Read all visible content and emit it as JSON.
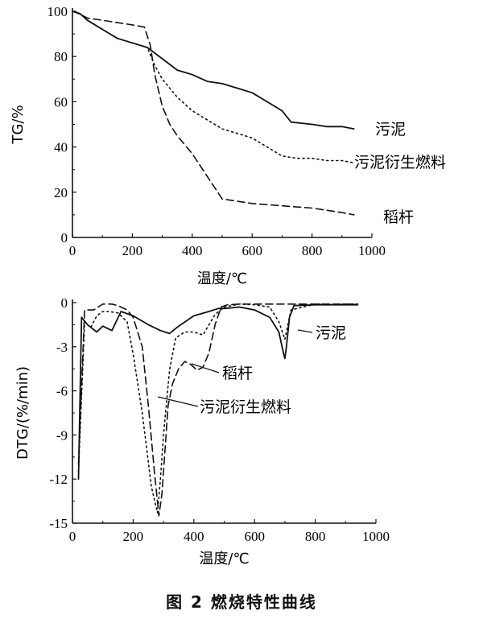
{
  "chart_data": [
    {
      "type": "line",
      "ylabel": "TG/%",
      "xlabel": "温度/℃",
      "xlim": [
        0,
        1000
      ],
      "ylim": [
        0,
        100
      ],
      "xticks": [
        0,
        200,
        400,
        600,
        800,
        1000
      ],
      "yticks": [
        0,
        20,
        40,
        60,
        80,
        100
      ],
      "grid": false,
      "series": [
        {
          "name": "污泥",
          "style": "solid",
          "x": [
            0,
            25,
            50,
            100,
            150,
            200,
            250,
            300,
            350,
            400,
            450,
            500,
            550,
            600,
            650,
            700,
            730,
            800,
            850,
            900,
            940
          ],
          "y": [
            100,
            99,
            96,
            92,
            88,
            86,
            84,
            79,
            74,
            72,
            69,
            68,
            66,
            64,
            60,
            56,
            51,
            50,
            49,
            49,
            48
          ]
        },
        {
          "name": "污泥衍生燃料",
          "style": "dotted",
          "x": [
            0,
            25,
            50,
            100,
            150,
            200,
            250,
            275,
            300,
            350,
            400,
            450,
            500,
            550,
            600,
            650,
            700,
            750,
            800,
            850,
            900,
            940
          ],
          "y": [
            100,
            99,
            96,
            92,
            88,
            86,
            84,
            76,
            70,
            62,
            56,
            52,
            48,
            46,
            44,
            40,
            36,
            35,
            35,
            34,
            34,
            33
          ]
        },
        {
          "name": "稻杆",
          "style": "dashed",
          "x": [
            0,
            20,
            50,
            100,
            150,
            200,
            240,
            260,
            275,
            300,
            325,
            350,
            400,
            450,
            500,
            600,
            700,
            800,
            900,
            940
          ],
          "y": [
            100,
            99,
            97,
            96,
            95,
            94,
            93,
            85,
            72,
            58,
            50,
            45,
            37,
            27,
            17,
            15,
            14,
            13,
            11,
            10
          ]
        }
      ]
    },
    {
      "type": "line",
      "ylabel": "DTG/(%/min)",
      "xlabel": "温度/℃",
      "xlim": [
        0,
        1000
      ],
      "ylim": [
        -15,
        0
      ],
      "xticks": [
        0,
        200,
        400,
        600,
        800,
        1000
      ],
      "yticks": [
        0,
        -3,
        -6,
        -9,
        -12,
        -15
      ],
      "grid": false,
      "series": [
        {
          "name": "污泥",
          "style": "solid",
          "x": [
            20,
            30,
            50,
            80,
            100,
            130,
            160,
            200,
            250,
            290,
            320,
            350,
            400,
            450,
            480,
            500,
            550,
            600,
            650,
            680,
            695,
            700,
            705,
            715,
            730,
            800,
            900,
            940
          ],
          "y": [
            -12,
            -1,
            -1.5,
            -2,
            -1.6,
            -1.9,
            -0.6,
            -0.9,
            -1.5,
            -1.9,
            -2.1,
            -1.6,
            -0.9,
            -0.6,
            -0.4,
            -0.4,
            -0.3,
            -0.5,
            -1.0,
            -2.0,
            -3.4,
            -3.8,
            -3.0,
            -1.0,
            -0.2,
            -0.15,
            -0.15,
            -0.15
          ]
        },
        {
          "name": "污泥衍生燃料",
          "style": "dotted",
          "x": [
            20,
            40,
            60,
            80,
            100,
            120,
            150,
            180,
            200,
            230,
            260,
            280,
            290,
            300,
            320,
            340,
            370,
            400,
            430,
            470,
            500,
            550,
            600,
            650,
            680,
            700,
            720,
            800,
            940
          ],
          "y": [
            -11.5,
            -1.3,
            -1.7,
            -0.9,
            -0.6,
            -0.6,
            -0.7,
            -1.3,
            -3.5,
            -7.5,
            -12.5,
            -14.3,
            -12,
            -9,
            -4.6,
            -2.4,
            -2.0,
            -2.0,
            -2.2,
            -0.8,
            -0.3,
            -0.1,
            -0.15,
            -0.3,
            -1.3,
            -2.5,
            -0.5,
            -0.1,
            -0.1
          ]
        },
        {
          "name": "稻杆",
          "style": "dashed",
          "x": [
            20,
            40,
            70,
            100,
            130,
            150,
            180,
            200,
            230,
            250,
            270,
            285,
            295,
            305,
            315,
            330,
            350,
            370,
            390,
            410,
            430,
            450,
            470,
            490,
            510,
            550,
            600,
            940
          ],
          "y": [
            -11,
            -0.5,
            -0.5,
            -0.1,
            -0.1,
            -0.2,
            -0.5,
            -1.0,
            -3.0,
            -7.0,
            -11.5,
            -14.5,
            -13,
            -10,
            -7.0,
            -5.5,
            -4.5,
            -4.0,
            -4.2,
            -4.6,
            -4.4,
            -3.4,
            -1.5,
            -0.3,
            -0.15,
            -0.1,
            -0.1,
            -0.1
          ]
        }
      ]
    }
  ],
  "caption": "图 2   燃烧特性曲线"
}
